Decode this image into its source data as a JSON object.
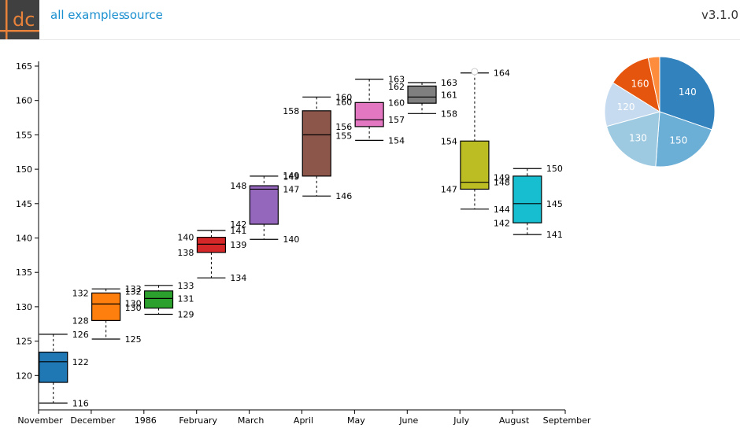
{
  "header": {
    "logo_text": "dc",
    "all_examples": "all examples",
    "source": "source",
    "version": "v3.1.0"
  },
  "colors": {
    "link": "#1a8fd0",
    "logo_bg": "#404040",
    "logo_accent": "#e8823a"
  },
  "chart_data": [
    {
      "type": "box",
      "ylim": [
        115,
        165
      ],
      "y_ticks": [
        120,
        125,
        130,
        135,
        140,
        145,
        150,
        155,
        160,
        165
      ],
      "x_tick_labels": [
        "November",
        "December",
        "1986",
        "February",
        "March",
        "April",
        "May",
        "June",
        "July",
        "August",
        "September"
      ],
      "boxes": [
        {
          "color": "#1f77b4",
          "min": 116,
          "q1": 119,
          "median": 122,
          "q3": 123.4,
          "max": 126,
          "labels": [
            {
              "side": "right",
              "text": "126",
              "y": 126
            },
            {
              "side": "right",
              "text": "122",
              "y": 122
            },
            {
              "side": "right",
              "text": "116",
              "y": 116
            }
          ]
        },
        {
          "color": "#ff7f0e",
          "min": 125.3,
          "q1": 128,
          "median": 130.4,
          "q3": 132,
          "max": 132.6,
          "labels": [
            {
              "side": "right",
              "text": "133",
              "y": 132.6
            },
            {
              "side": "right",
              "text": "132",
              "y": 132.2
            },
            {
              "side": "left",
              "text": "132",
              "y": 132
            },
            {
              "side": "right",
              "text": "130",
              "y": 130.5
            },
            {
              "side": "right",
              "text": "130",
              "y": 129.9
            },
            {
              "side": "left",
              "text": "128",
              "y": 128
            },
            {
              "side": "right",
              "text": "125",
              "y": 125.3
            }
          ]
        },
        {
          "color": "#2ca02c",
          "min": 128.9,
          "q1": 129.8,
          "median": 131.2,
          "q3": 132.3,
          "max": 133.1,
          "labels": [
            {
              "side": "right",
              "text": "133",
              "y": 133.1
            },
            {
              "side": "right",
              "text": "131",
              "y": 131.2
            },
            {
              "side": "right",
              "text": "129",
              "y": 128.9
            }
          ]
        },
        {
          "color": "#d62728",
          "min": 134.2,
          "q1": 137.9,
          "median": 139.1,
          "q3": 140.1,
          "max": 141.1,
          "labels": [
            {
              "side": "right",
              "text": "141",
              "y": 141.1
            },
            {
              "side": "left",
              "text": "140",
              "y": 140.1
            },
            {
              "side": "right",
              "text": "139",
              "y": 139
            },
            {
              "side": "left",
              "text": "138",
              "y": 137.9
            },
            {
              "side": "right",
              "text": "134",
              "y": 134.2
            }
          ]
        },
        {
          "color": "#9467bd",
          "min": 139.8,
          "q1": 142,
          "median": 147.1,
          "q3": 147.6,
          "max": 149,
          "labels": [
            {
              "side": "right",
              "text": "149",
              "y": 149.1
            },
            {
              "side": "right",
              "text": "149",
              "y": 148.9
            },
            {
              "side": "left",
              "text": "148",
              "y": 147.6
            },
            {
              "side": "right",
              "text": "147",
              "y": 147.1
            },
            {
              "side": "left",
              "text": "142",
              "y": 142
            },
            {
              "side": "right",
              "text": "140",
              "y": 139.8
            }
          ]
        },
        {
          "color": "#8c564b",
          "min": 146.1,
          "q1": 149,
          "median": 155,
          "q3": 158.5,
          "max": 160.5,
          "labels": [
            {
              "side": "right",
              "text": "160",
              "y": 160.5
            },
            {
              "side": "right",
              "text": "160",
              "y": 159.8
            },
            {
              "side": "left",
              "text": "158",
              "y": 158.5
            },
            {
              "side": "right",
              "text": "156",
              "y": 156.2
            },
            {
              "side": "right",
              "text": "155",
              "y": 154.9
            },
            {
              "side": "right",
              "text": "146",
              "y": 146.1
            }
          ]
        },
        {
          "color": "#e377c2",
          "min": 154.2,
          "q1": 156.2,
          "median": 157.2,
          "q3": 159.7,
          "max": 163.1,
          "labels": [
            {
              "side": "right",
              "text": "163",
              "y": 163.1
            },
            {
              "side": "right",
              "text": "160",
              "y": 159.7
            },
            {
              "side": "right",
              "text": "157",
              "y": 157.2
            },
            {
              "side": "right",
              "text": "154",
              "y": 154.2
            }
          ]
        },
        {
          "color": "#7f7f7f",
          "min": 158.1,
          "q1": 159.6,
          "median": 160.5,
          "q3": 162.1,
          "max": 162.6,
          "labels": [
            {
              "side": "right",
              "text": "163",
              "y": 162.6
            },
            {
              "side": "left",
              "text": "162",
              "y": 162
            },
            {
              "side": "right",
              "text": "161",
              "y": 160.8
            },
            {
              "side": "right",
              "text": "158",
              "y": 158.1
            }
          ]
        },
        {
          "color": "#bcbd22",
          "min": 144.2,
          "q1": 147.1,
          "median": 148.1,
          "q3": 154.1,
          "max": 164,
          "outlier": 164.2,
          "labels": [
            {
              "side": "right",
              "text": "164",
              "y": 164
            },
            {
              "side": "left",
              "text": "154",
              "y": 154.1
            },
            {
              "side": "right",
              "text": "149",
              "y": 148.8
            },
            {
              "side": "right",
              "text": "148",
              "y": 148.1
            },
            {
              "side": "left",
              "text": "147",
              "y": 147.1
            },
            {
              "side": "right",
              "text": "144",
              "y": 144.2
            }
          ]
        },
        {
          "color": "#17becf",
          "min": 140.5,
          "q1": 142.2,
          "median": 145,
          "q3": 149,
          "max": 150.1,
          "labels": [
            {
              "side": "right",
              "text": "150",
              "y": 150.1
            },
            {
              "side": "right",
              "text": "145",
              "y": 145
            },
            {
              "side": "left",
              "text": "142",
              "y": 142.2
            },
            {
              "side": "right",
              "text": "141",
              "y": 140.5
            }
          ]
        }
      ]
    },
    {
      "type": "pie",
      "slices": [
        {
          "label": "140",
          "value": 9,
          "color": "#3182bd"
        },
        {
          "label": "150",
          "value": 6.2,
          "color": "#6baed6"
        },
        {
          "label": "130",
          "value": 5.8,
          "color": "#9ecae1"
        },
        {
          "label": "120",
          "value": 3.9,
          "color": "#c6dbef"
        },
        {
          "label": "160",
          "value": 3.8,
          "color": "#e6550d"
        },
        {
          "label": "",
          "value": 1,
          "color": "#fd8d3c"
        }
      ]
    }
  ]
}
